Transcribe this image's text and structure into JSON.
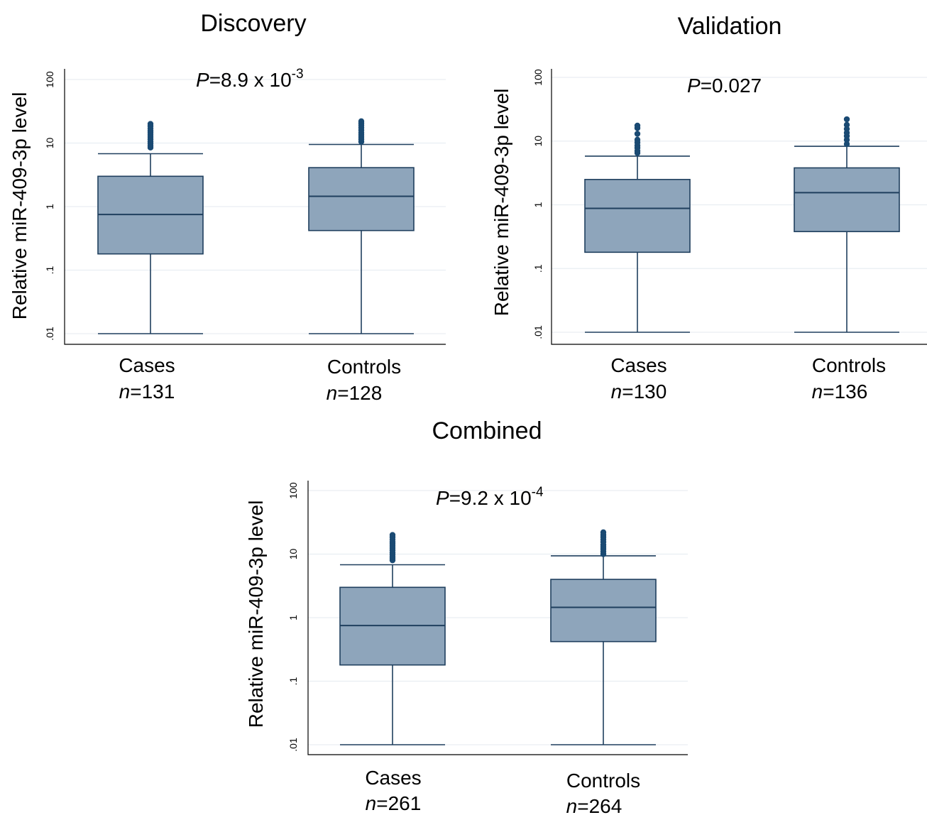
{
  "chart_data": [
    {
      "type": "box",
      "title": "Discovery",
      "ylabel": "Relative miR-409-3p level",
      "yscale": "log",
      "ylim": [
        0.01,
        100
      ],
      "yticks": [
        {
          "value": 0.01,
          "label": ".01"
        },
        {
          "value": 0.1,
          "label": ".1"
        },
        {
          "value": 1,
          "label": "1"
        },
        {
          "value": 10,
          "label": "10"
        },
        {
          "value": 100,
          "label": "100"
        }
      ],
      "grid": true,
      "annotation": {
        "prefix": "P",
        "text": "=8.9 x 10",
        "sup": "-3"
      },
      "groups": [
        {
          "label": "Cases",
          "n_prefix": "n",
          "n_text": "=131",
          "min": 0.01,
          "q1": 0.18,
          "median": 0.75,
          "q3": 3.0,
          "max": 6.8,
          "outliers": [
            8.5,
            9.0,
            9.8,
            10.5,
            11.5,
            12.5,
            13.5,
            14.5,
            15.5,
            17.0,
            18.5,
            20.0
          ]
        },
        {
          "label": "Controls",
          "n_prefix": "n",
          "n_text": "=128",
          "min": 0.01,
          "q1": 0.42,
          "median": 1.45,
          "q3": 4.1,
          "max": 9.5,
          "outliers": [
            10.5,
            11.5,
            12.5,
            13.5,
            14.5,
            16.0,
            17.5,
            19.0,
            20.5,
            22.0
          ]
        }
      ]
    },
    {
      "type": "box",
      "title": "Validation",
      "ylabel": "Relative miR-409-3p level",
      "yscale": "log",
      "ylim": [
        0.01,
        100
      ],
      "yticks": [
        {
          "value": 0.01,
          "label": ".01"
        },
        {
          "value": 0.1,
          "label": ".1"
        },
        {
          "value": 1,
          "label": "1"
        },
        {
          "value": 10,
          "label": "10"
        },
        {
          "value": 100,
          "label": "100"
        }
      ],
      "grid": true,
      "annotation": {
        "prefix": "P",
        "text": "=0.027",
        "sup": ""
      },
      "groups": [
        {
          "label": "Cases",
          "n_prefix": "n",
          "n_text": "=130",
          "min": 0.01,
          "q1": 0.18,
          "median": 0.88,
          "q3": 2.5,
          "max": 5.8,
          "outliers": [
            6.5,
            7.0,
            7.8,
            8.5,
            9.5,
            10.5,
            13.0,
            16.0,
            17.5
          ]
        },
        {
          "label": "Controls",
          "n_prefix": "n",
          "n_text": "=136",
          "min": 0.01,
          "q1": 0.38,
          "median": 1.55,
          "q3": 3.8,
          "max": 8.3,
          "outliers": [
            9.0,
            10.5,
            12.0,
            13.5,
            15.5,
            18.0,
            22.0
          ]
        }
      ]
    },
    {
      "type": "box",
      "title": "Combined",
      "ylabel": "Relative miR-409-3p level",
      "yscale": "log",
      "ylim": [
        0.01,
        100
      ],
      "yticks": [
        {
          "value": 0.01,
          "label": ".01"
        },
        {
          "value": 0.1,
          "label": ".1"
        },
        {
          "value": 1,
          "label": "1"
        },
        {
          "value": 10,
          "label": "10"
        },
        {
          "value": 100,
          "label": "100"
        }
      ],
      "grid": true,
      "annotation": {
        "prefix": "P",
        "text": "=9.2 x 10",
        "sup": "-4"
      },
      "groups": [
        {
          "label": "Cases",
          "n_prefix": "n",
          "n_text": "=261",
          "min": 0.01,
          "q1": 0.18,
          "median": 0.75,
          "q3": 3.0,
          "max": 6.8,
          "outliers": [
            8.0,
            8.5,
            9.0,
            9.8,
            10.5,
            11.5,
            12.5,
            13.5,
            14.5,
            15.5,
            17.0,
            18.5,
            20.0
          ]
        },
        {
          "label": "Controls",
          "n_prefix": "n",
          "n_text": "=264",
          "min": 0.01,
          "q1": 0.42,
          "median": 1.45,
          "q3": 4.0,
          "max": 9.4,
          "outliers": [
            10.0,
            11.0,
            12.0,
            13.0,
            14.0,
            15.5,
            17.0,
            18.5,
            20.0,
            22.0
          ]
        }
      ]
    }
  ],
  "colors": {
    "box_fill": "#8ea5bb",
    "box_stroke": "#1f3f5e",
    "outlier": "#1a4a73",
    "grid": "#e9eef2"
  }
}
